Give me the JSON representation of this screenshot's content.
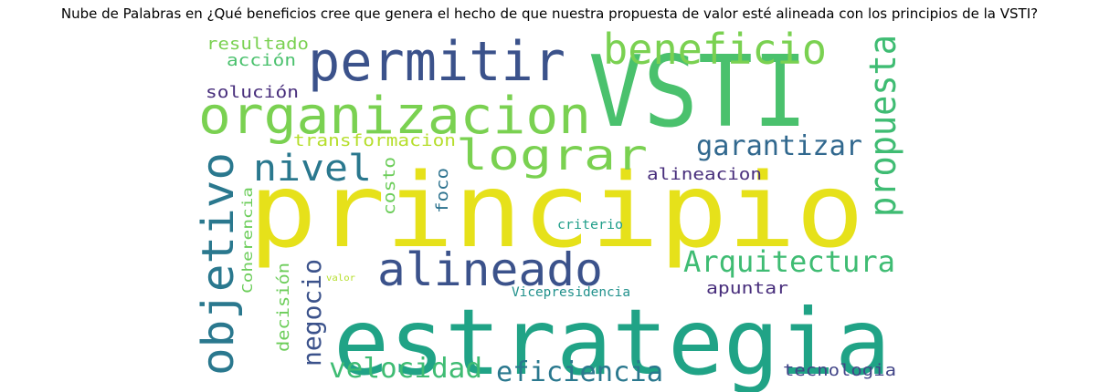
{
  "title": "Nube de Palabras en ¿Qué beneficios cree que genera el hecho de que nuestra propuesta de valor esté alineada con los principios de la VSTI?",
  "chart_data": {
    "type": "wordcloud",
    "title": "Nube de Palabras en ¿Qué beneficios cree que genera el hecho de que nuestra propuesta de valor esté alineada con los principios de la VSTI?",
    "words": [
      {
        "text": "principio",
        "weight": 1.0,
        "color": "#e6e11a"
      },
      {
        "text": "estrategia",
        "weight": 0.85,
        "color": "#20a386"
      },
      {
        "text": "VSTI",
        "weight": 0.78,
        "color": "#4ac16d"
      },
      {
        "text": "organizacion",
        "weight": 0.52,
        "color": "#7ad151"
      },
      {
        "text": "permitir",
        "weight": 0.48,
        "color": "#3b528b"
      },
      {
        "text": "objetivo",
        "weight": 0.45,
        "color": "#2a788e"
      },
      {
        "text": "alineado",
        "weight": 0.42,
        "color": "#3b528b"
      },
      {
        "text": "lograr",
        "weight": 0.4,
        "color": "#7ad151"
      },
      {
        "text": "beneficio",
        "weight": 0.38,
        "color": "#7ad151"
      },
      {
        "text": "propuesta",
        "weight": 0.32,
        "color": "#3fbc73"
      },
      {
        "text": "nivel",
        "weight": 0.32,
        "color": "#2a788e"
      },
      {
        "text": "Arquitectura",
        "weight": 0.27,
        "color": "#3fbc73"
      },
      {
        "text": "velocidad",
        "weight": 0.25,
        "color": "#3fbc73"
      },
      {
        "text": "eficiencia",
        "weight": 0.25,
        "color": "#2a788e"
      },
      {
        "text": "garantizar",
        "weight": 0.24,
        "color": "#31688e"
      },
      {
        "text": "negocio",
        "weight": 0.22,
        "color": "#3b528b"
      },
      {
        "text": "transformacion",
        "weight": 0.16,
        "color": "#b5de2b"
      },
      {
        "text": "alineacion",
        "weight": 0.15,
        "color": "#472d7b"
      },
      {
        "text": "solución",
        "weight": 0.15,
        "color": "#472d7b"
      },
      {
        "text": "resultado",
        "weight": 0.15,
        "color": "#7ad151"
      },
      {
        "text": "acción",
        "weight": 0.15,
        "color": "#4ac16d"
      },
      {
        "text": "costo",
        "weight": 0.15,
        "color": "#6ccd5a"
      },
      {
        "text": "foco",
        "weight": 0.15,
        "color": "#2c728e"
      },
      {
        "text": "decisión",
        "weight": 0.15,
        "color": "#6ccd5a"
      },
      {
        "text": "apuntar",
        "weight": 0.15,
        "color": "#472d7b"
      },
      {
        "text": "tecnologia",
        "weight": 0.15,
        "color": "#414487"
      },
      {
        "text": "Coherencia",
        "weight": 0.12,
        "color": "#6ccd5a"
      },
      {
        "text": "Vicepresidencia",
        "weight": 0.12,
        "color": "#21918c"
      },
      {
        "text": "criterio",
        "weight": 0.11,
        "color": "#1f9e89"
      },
      {
        "text": "valor",
        "weight": 0.08,
        "color": "#b5de2b"
      }
    ]
  }
}
